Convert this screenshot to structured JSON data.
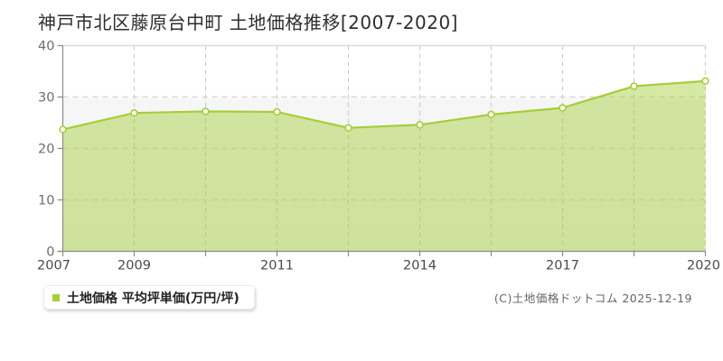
{
  "page": {
    "title": "神戸市北区藤原台中町 土地価格推移[2007-2020]",
    "copyright": "(C)土地価格ドットコム 2025-12-19"
  },
  "legend": {
    "label": "土地価格 平均坪単価(万円/坪)",
    "marker_color": "#a6ce39"
  },
  "chart_data": {
    "type": "area",
    "title": "神戸市北区藤原台中町 土地価格推移[2007-2020]",
    "series_name": "土地価格 平均坪単価(万円/坪)",
    "ylabel_unit": "万円/坪",
    "x_tick_labels": [
      "2007",
      "2009",
      "",
      "2011",
      "",
      "2014",
      "",
      "2017",
      "",
      "2020"
    ],
    "values": [
      23.7,
      26.9,
      27.2,
      27.1,
      24.0,
      24.6,
      26.6,
      27.9,
      32.1,
      33.1
    ],
    "y_ticks": [
      0,
      10,
      20,
      30,
      40
    ],
    "ylim": [
      0,
      40
    ],
    "grid": true,
    "legend_position": "bottom-left",
    "colors": {
      "line": "#a6ce39",
      "fill_opacity": 0.46,
      "marker_fill": "#ffffff",
      "grid_h": "#d9d9d9",
      "grid_v": "#cccccc",
      "plot_border_top": "#dddddd",
      "axis": "#8c8c8c",
      "y_label": "#6e6e6e",
      "x_label": "#4a4a4a",
      "plot_bg_low": "#f3f3f3"
    }
  }
}
